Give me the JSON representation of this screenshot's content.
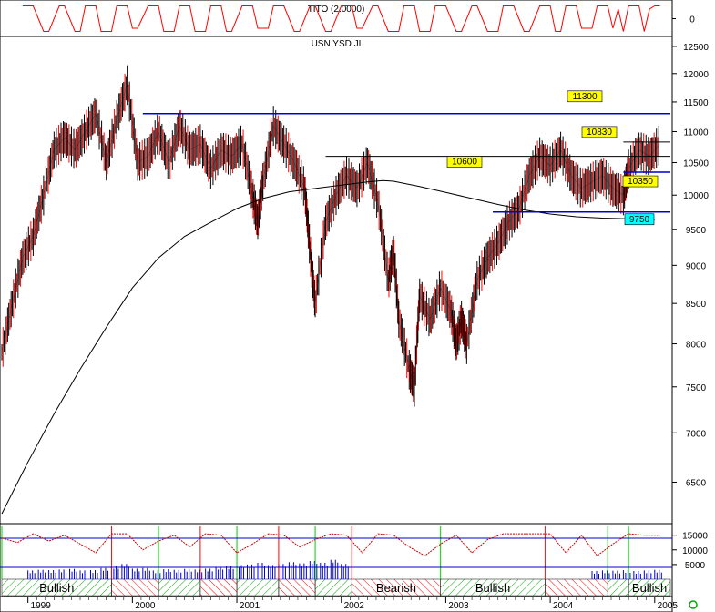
{
  "chart_data": [
    {
      "type": "line",
      "panel": "indicator-top",
      "title": "TITO (2.0000)",
      "y_tick_labels": [
        "0"
      ],
      "series": [
        {
          "color": "#ff0000",
          "x": [
            1998.95,
            1999.05,
            1999.15,
            1999.2,
            1999.3,
            1999.35,
            1999.45,
            1999.5,
            1999.55,
            1999.65,
            1999.7,
            1999.8,
            1999.85,
            1999.95,
            2000.0,
            2000.05,
            2000.15,
            2000.25,
            2000.3,
            2000.4,
            2000.45,
            2000.55,
            2000.6,
            2000.7,
            2000.75,
            2000.85,
            2000.9,
            2000.95,
            2001.05,
            2001.15,
            2001.2,
            2001.3,
            2001.35,
            2001.45,
            2001.55,
            2001.6,
            2001.7,
            2001.75,
            2001.85,
            2001.9,
            2002.0,
            2002.1,
            2002.15,
            2002.2,
            2002.3,
            2002.35,
            2002.45,
            2002.55,
            2002.6,
            2002.7,
            2002.75,
            2002.85,
            2002.9,
            2003.0,
            2003.1,
            2003.15,
            2003.25,
            2003.3,
            2003.4,
            2003.5,
            2003.55,
            2003.65,
            2003.75,
            2003.8,
            2003.9,
            2004.0,
            2004.05,
            2004.1,
            2004.15,
            2004.25,
            2004.3,
            2004.4,
            2004.45,
            2004.55,
            2004.6,
            2004.65,
            2004.7,
            2004.75,
            2004.85,
            2004.9,
            2004.95,
            2005.0,
            2005.05
          ],
          "values": [
            0.9,
            0.9,
            0.1,
            0.1,
            0.9,
            0.9,
            0.1,
            0.1,
            0.9,
            0.9,
            0.1,
            0.1,
            0.9,
            0.9,
            0.2,
            0.2,
            0.9,
            0.9,
            0.1,
            0.1,
            0.9,
            0.9,
            0.1,
            0.1,
            0.9,
            0.9,
            0.1,
            0.1,
            0.9,
            0.9,
            0.2,
            0.2,
            0.9,
            0.9,
            0.1,
            0.1,
            0.9,
            0.9,
            0.1,
            0.1,
            0.9,
            0.9,
            0.2,
            0.2,
            0.9,
            0.9,
            0.1,
            0.1,
            0.9,
            0.9,
            0.1,
            0.1,
            0.9,
            0.9,
            0.1,
            0.1,
            0.9,
            0.9,
            0.1,
            0.1,
            0.9,
            0.9,
            0.1,
            0.1,
            0.9,
            0.9,
            0.1,
            0.1,
            0.9,
            0.9,
            0.2,
            0.2,
            0.9,
            0.9,
            0.2,
            0.8,
            0.1,
            0.9,
            0.9,
            0.1,
            0.8,
            0.9,
            0.9
          ]
        }
      ]
    },
    {
      "type": "line",
      "panel": "price",
      "title": "USN YSD JI",
      "xlabel": "",
      "ylabel": "",
      "x_tick_labels": [
        "1999",
        "2000",
        "2001",
        "2002",
        "2003",
        "2004",
        "2005"
      ],
      "y_tick_labels": [
        "12500",
        "12000",
        "11500",
        "11000",
        "10500",
        "10000",
        "9500",
        "9000",
        "8500",
        "8000",
        "7500",
        "7000",
        "6500"
      ],
      "ylim": [
        6150,
        12550
      ],
      "xlim": [
        1998.75,
        2005.15
      ],
      "y_scale": "log",
      "grid": false,
      "series": [
        {
          "color": "#000000",
          "x": [
            1998.75,
            1998.85,
            1998.95,
            1999.05,
            1999.15,
            1999.25,
            1999.35,
            1999.45,
            1999.55,
            1999.65,
            1999.75,
            1999.85,
            1999.95,
            2000.05,
            2000.15,
            2000.25,
            2000.35,
            2000.45,
            2000.55,
            2000.65,
            2000.75,
            2000.85,
            2000.95,
            2001.05,
            2001.15,
            2001.2,
            2001.25,
            2001.35,
            2001.45,
            2001.55,
            2001.65,
            2001.7,
            2001.75,
            2001.85,
            2001.95,
            2002.05,
            2002.15,
            2002.25,
            2002.35,
            2002.45,
            2002.5,
            2002.55,
            2002.65,
            2002.7,
            2002.75,
            2002.85,
            2002.95,
            2003.05,
            2003.1,
            2003.15,
            2003.2,
            2003.3,
            2003.4,
            2003.5,
            2003.6,
            2003.7,
            2003.8,
            2003.9,
            2004.0,
            2004.1,
            2004.2,
            2004.3,
            2004.4,
            2004.5,
            2004.6,
            2004.7,
            2004.75,
            2004.85,
            2004.95,
            2005.05
          ],
          "values": [
            7900,
            8500,
            9100,
            9400,
            10000,
            10700,
            10900,
            10700,
            11000,
            11300,
            10500,
            11200,
            11800,
            10500,
            10600,
            11000,
            10500,
            11100,
            10700,
            10800,
            10400,
            10700,
            10600,
            10800,
            10000,
            9600,
            10200,
            11100,
            10800,
            10500,
            10100,
            9200,
            8500,
            9600,
            10000,
            10300,
            10100,
            10500,
            9900,
            8800,
            9200,
            8300,
            7700,
            7500,
            8600,
            8300,
            8700,
            8400,
            8000,
            8300,
            8000,
            8800,
            9100,
            9300,
            9600,
            9800,
            10300,
            10600,
            10450,
            10700,
            10300,
            10100,
            10200,
            10300,
            10100,
            10000,
            10400,
            10700,
            10600,
            10800
          ]
        },
        {
          "color": "#000000",
          "x": [
            1998.75,
            1999.0,
            1999.25,
            1999.5,
            1999.75,
            2000.0,
            2000.25,
            2000.5,
            2000.75,
            2001.0,
            2001.25,
            2001.5,
            2001.75,
            2002.0,
            2002.25,
            2002.4,
            2002.5,
            2002.75,
            2003.0,
            2003.25,
            2003.5,
            2003.75,
            2004.0,
            2004.25,
            2004.5,
            2004.75,
            2005.0
          ],
          "values": [
            6200,
            6700,
            7200,
            7700,
            8200,
            8700,
            9100,
            9400,
            9600,
            9800,
            9950,
            10050,
            10100,
            10150,
            10200,
            10220,
            10210,
            10130,
            10040,
            9950,
            9860,
            9780,
            9720,
            9680,
            9660,
            9650,
            9640
          ]
        }
      ],
      "reference_lines": [
        {
          "label": "11300",
          "value": 11300,
          "x_start": 2000.1,
          "x_end": 2005.15,
          "color": "#0000cc"
        },
        {
          "label": "10600",
          "value": 10600,
          "x_start": 2001.85,
          "x_end": 2005.15,
          "color": "#000000"
        },
        {
          "label": "10830",
          "value": 10830,
          "x_start": 2004.7,
          "x_end": 2005.15,
          "color": "#000000"
        },
        {
          "label": "10350",
          "value": 10350,
          "x_start": 2004.7,
          "x_end": 2005.15,
          "color": "#0000cc"
        },
        {
          "label": "9750",
          "value": 9750,
          "x_start": 2003.45,
          "x_end": 2005.15,
          "color": "#0000cc"
        }
      ]
    },
    {
      "type": "line",
      "panel": "indicator-bottom",
      "y_tick_labels": [
        "15000",
        "10000",
        "5000"
      ],
      "regime_labels": [
        "Bullish",
        "Bearish",
        "Bullish",
        "Bullish"
      ],
      "series": [
        {
          "color": "#cc0000",
          "x": [
            1998.75,
            1998.9,
            1999.05,
            1999.2,
            1999.35,
            1999.5,
            1999.65,
            1999.8,
            1999.95,
            2000.1,
            2000.25,
            2000.4,
            2000.55,
            2000.7,
            2000.85,
            2001.0,
            2001.15,
            2001.3,
            2001.45,
            2001.6,
            2001.75,
            2001.9,
            2002.05,
            2002.2,
            2002.35,
            2002.5,
            2002.65,
            2002.8,
            2002.95,
            2003.1,
            2003.25,
            2003.4,
            2003.55,
            2003.7,
            2003.85,
            2004.0,
            2004.15,
            2004.3,
            2004.45,
            2004.6,
            2004.75,
            2004.9,
            2005.05
          ],
          "values": [
            14000,
            12500,
            15500,
            13000,
            15000,
            12000,
            9000,
            15500,
            15500,
            10000,
            13000,
            15000,
            11000,
            15500,
            15000,
            9000,
            12000,
            15500,
            15000,
            11000,
            13500,
            15500,
            15000,
            9000,
            15500,
            15000,
            11000,
            8000,
            12000,
            15000,
            9000,
            13500,
            15500,
            15500,
            15500,
            15500,
            9000,
            15000,
            8000,
            12000,
            15500,
            15000,
            15000
          ]
        }
      ],
      "bars": {
        "color": "#0000cc",
        "x": [
          1999.0,
          1999.1,
          1999.2,
          1999.3,
          1999.4,
          1999.5,
          1999.6,
          1999.7,
          1999.8,
          1999.9,
          2000.0,
          2000.1,
          2000.2,
          2000.3,
          2000.4,
          2000.5,
          2000.6,
          2000.7,
          2000.8,
          2000.9,
          2001.0,
          2001.1,
          2001.2,
          2001.3,
          2001.4,
          2001.5,
          2001.6,
          2001.7,
          2001.8,
          2001.9,
          2002.0,
          2004.4,
          2004.5,
          2004.6,
          2004.7,
          2004.8,
          2004.9,
          2005.0
        ],
        "values": [
          3000,
          3200,
          3100,
          3300,
          3500,
          3000,
          3100,
          3800,
          4500,
          5200,
          3600,
          3800,
          3000,
          3400,
          3200,
          3500,
          3300,
          3600,
          4200,
          4400,
          4800,
          5000,
          5600,
          4800,
          5200,
          5800,
          5400,
          6200,
          5600,
          6600,
          5200,
          2800,
          3000,
          2900,
          3100,
          2800,
          3000,
          3200
        ]
      },
      "regimes": [
        {
          "label": "Bullish",
          "x_start": 1998.75,
          "x_end": 1999.8,
          "kind": "bull"
        },
        {
          "label": "",
          "x_start": 1999.8,
          "x_end": 2000.25,
          "kind": "bear"
        },
        {
          "label": "",
          "x_start": 2000.25,
          "x_end": 2000.65,
          "kind": "bull"
        },
        {
          "label": "",
          "x_start": 2000.65,
          "x_end": 2001.0,
          "kind": "bear"
        },
        {
          "label": "",
          "x_start": 2001.0,
          "x_end": 2001.4,
          "kind": "bull"
        },
        {
          "label": "",
          "x_start": 2001.4,
          "x_end": 2001.75,
          "kind": "bear"
        },
        {
          "label": "",
          "x_start": 2001.75,
          "x_end": 2002.1,
          "kind": "bull"
        },
        {
          "label": "Bearish",
          "x_start": 2002.1,
          "x_end": 2002.95,
          "kind": "bear"
        },
        {
          "label": "Bullish",
          "x_start": 2002.95,
          "x_end": 2003.95,
          "kind": "bull"
        },
        {
          "label": "",
          "x_start": 2003.95,
          "x_end": 2004.55,
          "kind": "bear"
        },
        {
          "label": "",
          "x_start": 2004.55,
          "x_end": 2004.75,
          "kind": "bull"
        },
        {
          "label": "Bullish",
          "x_start": 2004.75,
          "x_end": 2005.15,
          "kind": "bull"
        }
      ]
    }
  ],
  "colors": {
    "background": "#ffffff",
    "frame": "#000000",
    "price_up": "#000000",
    "price_down": "#ff0000",
    "support_line": "#0000cc",
    "moving_average": "#000000",
    "label_yellow": "#ffff00",
    "label_cyan": "#00ffff",
    "bull_hatch": "#00aa00",
    "bear_hatch": "#ff0000",
    "green_marker": "#00cc00",
    "red_marker": "#ff0000"
  },
  "icons": {
    "corner": "green-circle-icon"
  }
}
